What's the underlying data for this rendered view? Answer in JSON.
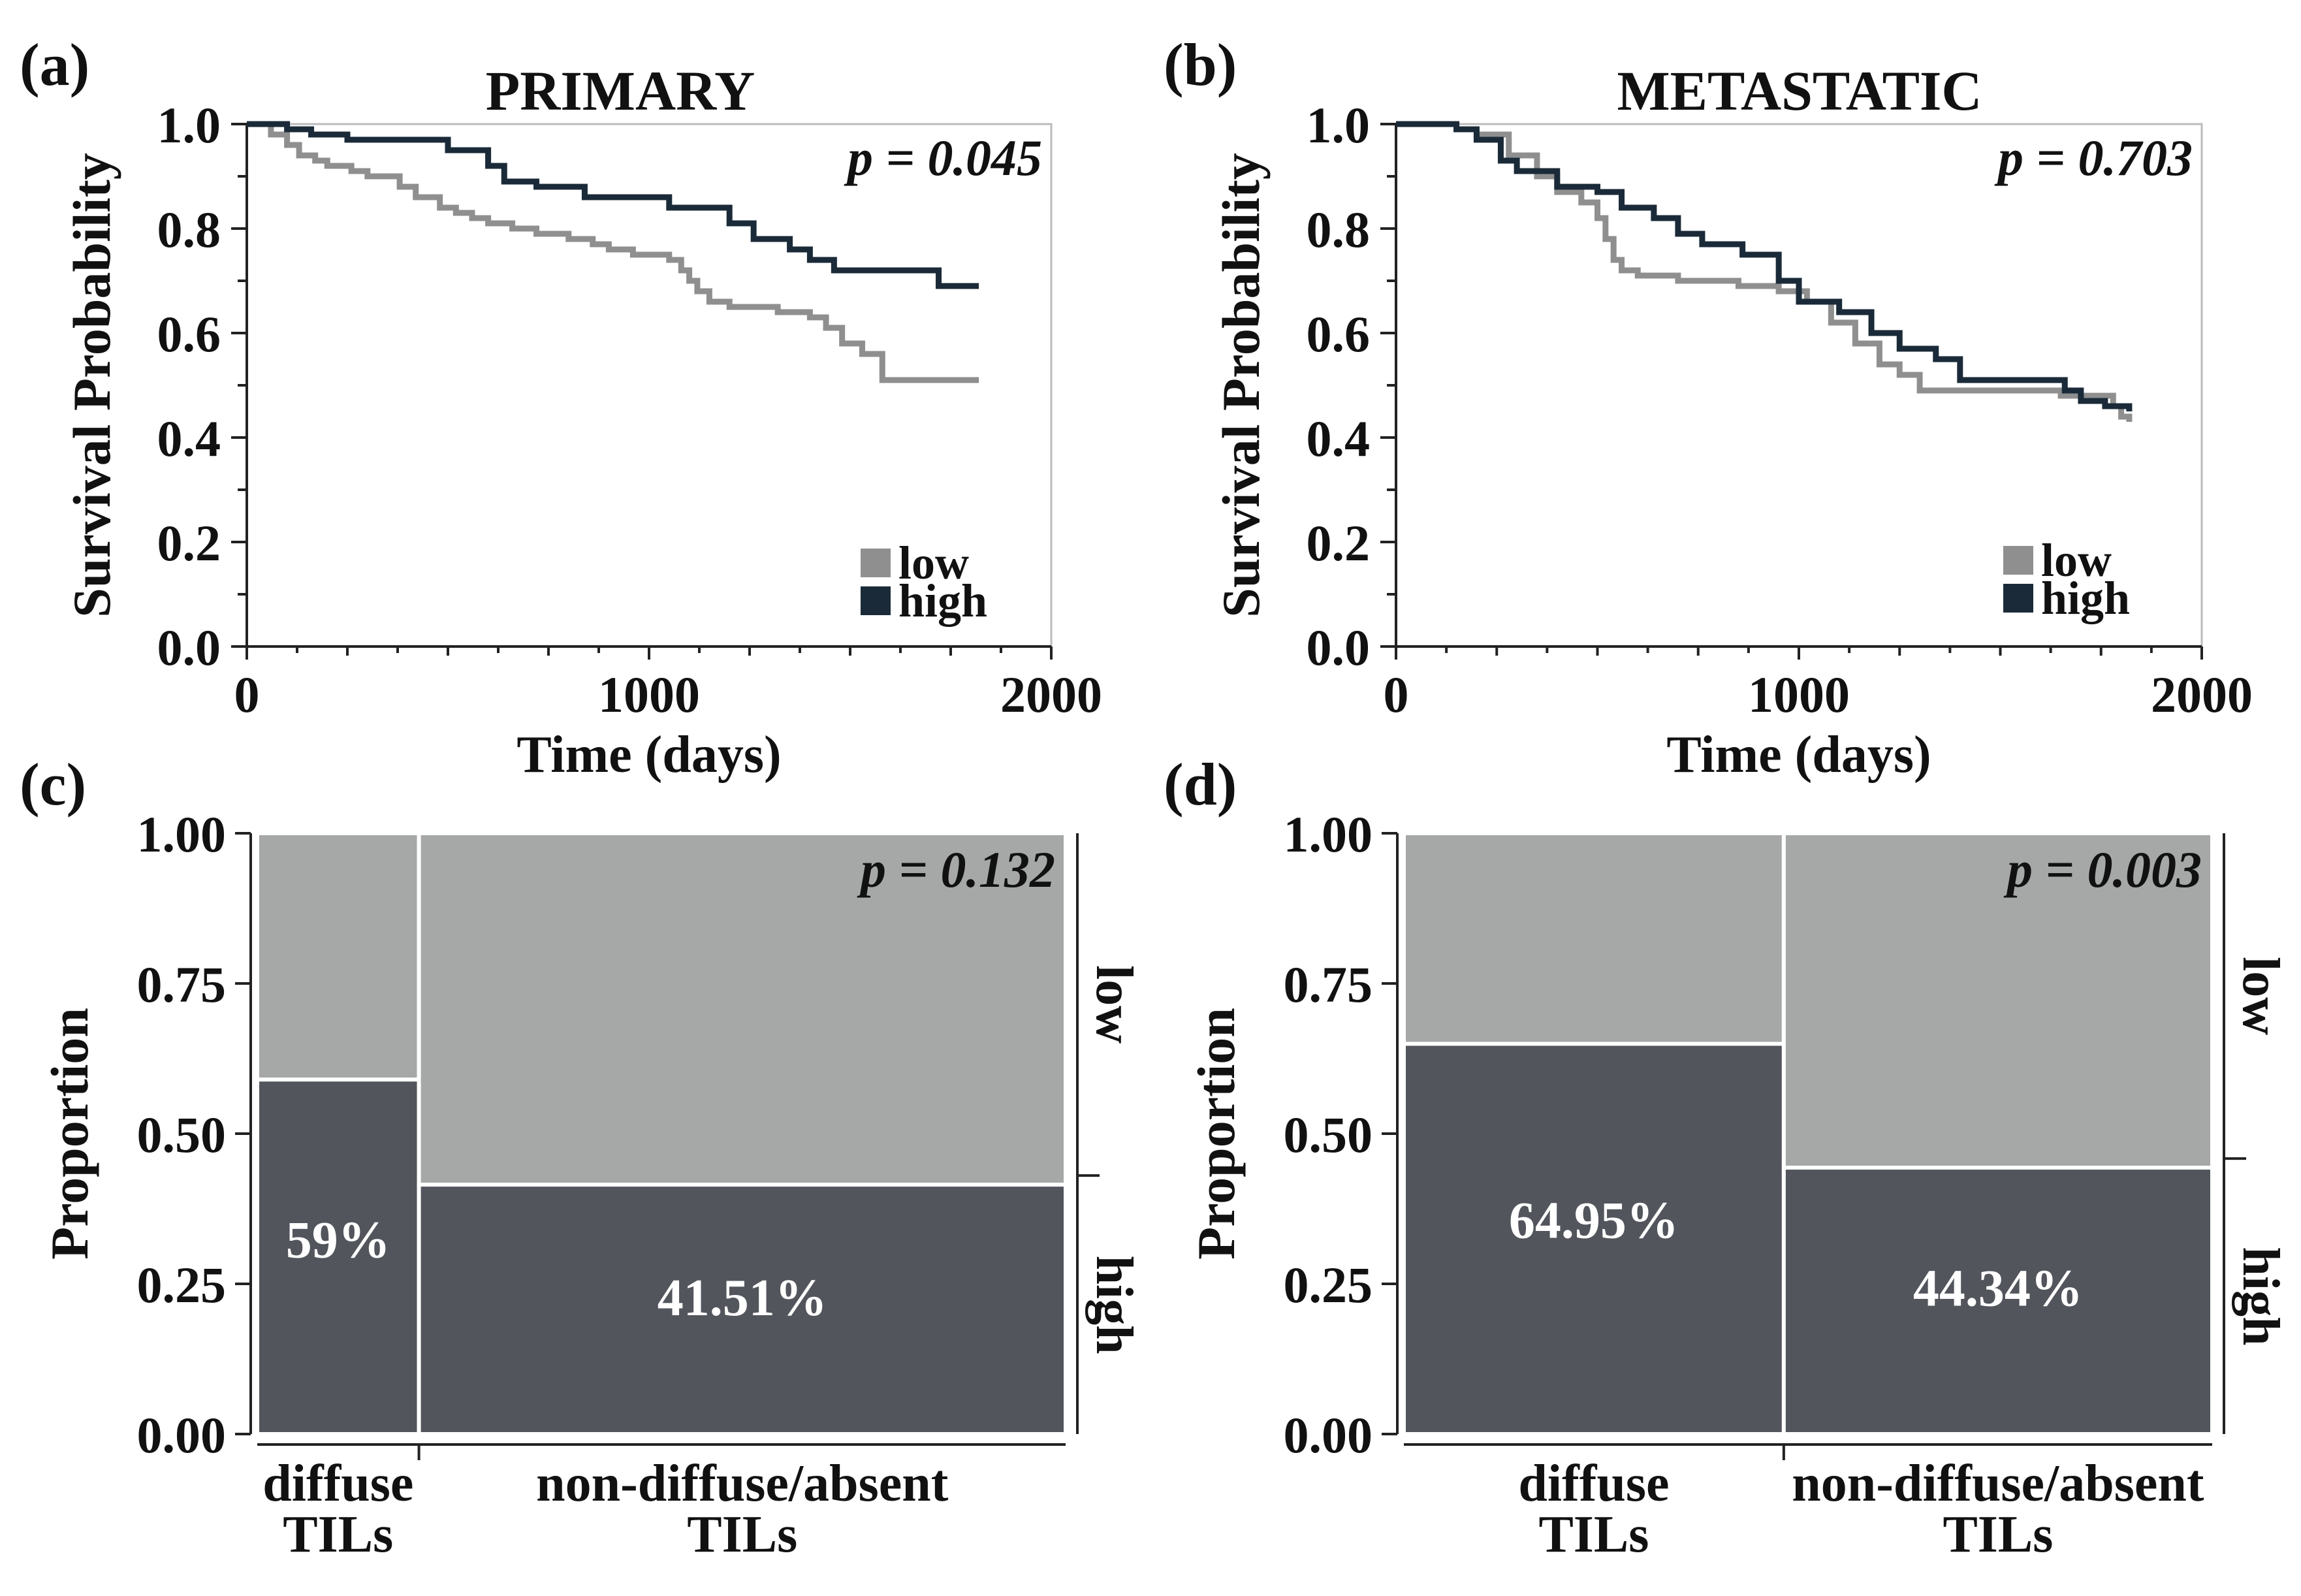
{
  "chart_data": [
    {
      "type": "line",
      "panel_label": "(a)",
      "title": "PRIMARY",
      "xlabel": "Time (days)",
      "ylabel": "Survival Probability",
      "xlim": [
        0,
        2000
      ],
      "ylim": [
        0,
        1
      ],
      "x_ticks": [
        "0",
        "1000",
        "2000"
      ],
      "y_ticks": [
        "0.0",
        "0.2",
        "0.4",
        "0.6",
        "0.8",
        "1.0"
      ],
      "annotation": "p = 0.045",
      "legend": [
        "low",
        "high"
      ],
      "series": [
        {
          "name": "low",
          "color": "#8f8f8f",
          "x": [
            0,
            60,
            100,
            130,
            170,
            200,
            260,
            300,
            380,
            420,
            480,
            520,
            560,
            600,
            660,
            720,
            800,
            860,
            900,
            960,
            1050,
            1080,
            1100,
            1120,
            1150,
            1200,
            1260,
            1320,
            1400,
            1440,
            1480,
            1530,
            1580,
            1820
          ],
          "y": [
            1.0,
            0.98,
            0.96,
            0.94,
            0.93,
            0.92,
            0.91,
            0.9,
            0.88,
            0.86,
            0.84,
            0.83,
            0.82,
            0.81,
            0.8,
            0.79,
            0.78,
            0.77,
            0.76,
            0.75,
            0.74,
            0.72,
            0.7,
            0.68,
            0.66,
            0.65,
            0.65,
            0.64,
            0.63,
            0.61,
            0.58,
            0.56,
            0.51,
            0.51
          ]
        },
        {
          "name": "high",
          "color": "#1a2a38",
          "x": [
            0,
            100,
            160,
            250,
            380,
            500,
            600,
            640,
            720,
            840,
            1050,
            1200,
            1260,
            1350,
            1400,
            1460,
            1720,
            1820
          ],
          "y": [
            1.0,
            0.99,
            0.98,
            0.97,
            0.97,
            0.95,
            0.92,
            0.89,
            0.88,
            0.86,
            0.84,
            0.81,
            0.78,
            0.76,
            0.74,
            0.72,
            0.69,
            0.69
          ]
        }
      ]
    },
    {
      "type": "line",
      "panel_label": "(b)",
      "title": "METASTATIC",
      "xlabel": "Time (days)",
      "ylabel": "Survival Probability",
      "xlim": [
        0,
        2000
      ],
      "ylim": [
        0,
        1
      ],
      "x_ticks": [
        "0",
        "1000",
        "2000"
      ],
      "y_ticks": [
        "0.0",
        "0.2",
        "0.4",
        "0.6",
        "0.8",
        "1.0"
      ],
      "annotation": "p = 0.703",
      "legend": [
        "low",
        "high"
      ],
      "series": [
        {
          "name": "low",
          "color": "#8f8f8f",
          "x": [
            0,
            150,
            200,
            280,
            350,
            400,
            460,
            500,
            520,
            540,
            560,
            600,
            700,
            850,
            950,
            1020,
            1080,
            1140,
            1200,
            1250,
            1300,
            1500,
            1650,
            1720,
            1780,
            1800,
            1820
          ],
          "y": [
            1.0,
            0.99,
            0.98,
            0.94,
            0.9,
            0.87,
            0.85,
            0.82,
            0.78,
            0.74,
            0.72,
            0.71,
            0.7,
            0.69,
            0.68,
            0.66,
            0.62,
            0.58,
            0.54,
            0.52,
            0.49,
            0.49,
            0.48,
            0.48,
            0.46,
            0.44,
            0.43
          ]
        },
        {
          "name": "high",
          "color": "#1a2a38",
          "x": [
            0,
            150,
            200,
            260,
            300,
            400,
            500,
            560,
            640,
            700,
            760,
            860,
            950,
            1000,
            1100,
            1180,
            1250,
            1340,
            1400,
            1660,
            1700,
            1760,
            1820
          ],
          "y": [
            1.0,
            0.99,
            0.97,
            0.93,
            0.91,
            0.88,
            0.87,
            0.84,
            0.82,
            0.79,
            0.77,
            0.75,
            0.7,
            0.66,
            0.64,
            0.6,
            0.57,
            0.55,
            0.51,
            0.49,
            0.47,
            0.46,
            0.45
          ]
        }
      ]
    },
    {
      "type": "mosaic",
      "panel_label": "(c)",
      "ylabel": "Proportion",
      "ylim": [
        0,
        1
      ],
      "y_ticks": [
        "0.00",
        "0.25",
        "0.50",
        "0.75",
        "1.00"
      ],
      "annotation": "p = 0.132",
      "right_labels": [
        "low",
        "high"
      ],
      "categories": [
        {
          "label_lines": [
            "diffuse",
            "TILs"
          ],
          "width_fraction": 0.2,
          "high": 0.59,
          "label": "59%"
        },
        {
          "label_lines": [
            "non-diffuse/absent",
            "TILs"
          ],
          "width_fraction": 0.8,
          "high": 0.4151,
          "label": "41.51%"
        }
      ],
      "colors": {
        "low": "#a6a8a8",
        "high": "#52555c"
      }
    },
    {
      "type": "mosaic",
      "panel_label": "(d)",
      "ylabel": "Proportion",
      "ylim": [
        0,
        1
      ],
      "y_ticks": [
        "0.00",
        "0.25",
        "0.50",
        "0.75",
        "1.00"
      ],
      "annotation": "p = 0.003",
      "right_labels": [
        "low",
        "high"
      ],
      "categories": [
        {
          "label_lines": [
            "diffuse",
            "TILs"
          ],
          "width_fraction": 0.47,
          "high": 0.6495,
          "label": "64.95%"
        },
        {
          "label_lines": [
            "non-diffuse/absent",
            "TILs"
          ],
          "width_fraction": 0.53,
          "high": 0.4434,
          "label": "44.34%"
        }
      ],
      "colors": {
        "low": "#a6a8a8",
        "high": "#52555c"
      }
    }
  ]
}
